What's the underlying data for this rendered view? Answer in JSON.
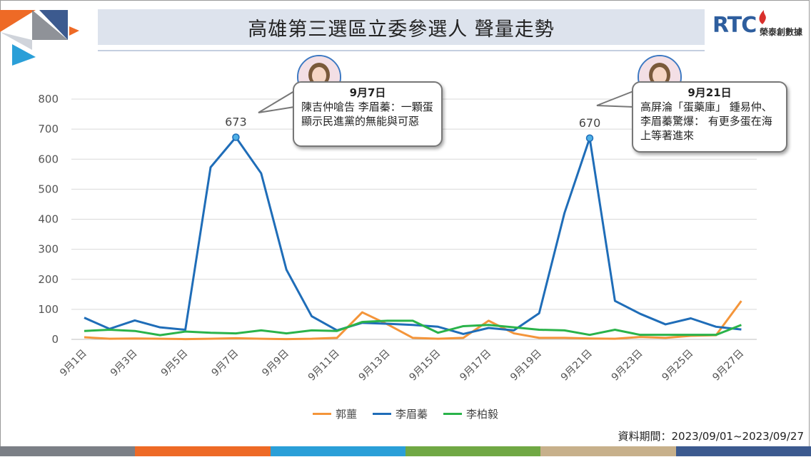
{
  "header": {
    "title": "高雄第三選區立委參選人  聲量走勢",
    "logo_mark": "RTC",
    "logo_text": "榮泰創數據"
  },
  "colors": {
    "guo": "#f4953a",
    "li_meixun": "#1f6db8",
    "li_boyi": "#2ab34a",
    "footer": [
      "#7b7f86",
      "#ee6a26",
      "#2a9fd8",
      "#70a844",
      "#c7b08b",
      "#3c5a8f"
    ]
  },
  "chart_data": {
    "type": "line",
    "x": [
      "9月1日",
      "9月2日",
      "9月3日",
      "9月4日",
      "9月5日",
      "9月6日",
      "9月7日",
      "9月8日",
      "9月9日",
      "9月10日",
      "9月11日",
      "9月12日",
      "9月13日",
      "9月14日",
      "9月15日",
      "9月16日",
      "9月17日",
      "9月18日",
      "9月19日",
      "9月20日",
      "9月21日",
      "9月22日",
      "9月23日",
      "9月24日",
      "9月25日",
      "9月26日",
      "9月27日"
    ],
    "tick_labels": [
      "9月1日",
      "9月3日",
      "9月5日",
      "9月7日",
      "9月9日",
      "9月11日",
      "9月13日",
      "9月15日",
      "9月17日",
      "9月19日",
      "9月21日",
      "9月23日",
      "9月25日",
      "9月27日"
    ],
    "ylim": [
      0,
      800
    ],
    "yticks": [
      0,
      100,
      200,
      300,
      400,
      500,
      600,
      700,
      800
    ],
    "grid": true,
    "legend_position": "bottom",
    "series": [
      {
        "name": "郭蘁",
        "color": "#f4953a",
        "values": [
          7,
          2,
          3,
          2,
          1,
          2,
          4,
          2,
          1,
          2,
          5,
          90,
          50,
          5,
          2,
          5,
          62,
          20,
          5,
          5,
          3,
          2,
          8,
          5,
          12,
          14,
          128
        ]
      },
      {
        "name": "李眉蓁",
        "color": "#1f6db8",
        "values": [
          72,
          35,
          63,
          40,
          32,
          573,
          673,
          553,
          232,
          77,
          30,
          55,
          52,
          48,
          42,
          18,
          38,
          30,
          87,
          420,
          670,
          128,
          85,
          50,
          70,
          42,
          33
        ]
      },
      {
        "name": "李柏毅",
        "color": "#2ab34a",
        "values": [
          28,
          32,
          28,
          14,
          26,
          22,
          20,
          30,
          20,
          30,
          28,
          58,
          62,
          62,
          22,
          44,
          48,
          40,
          32,
          30,
          15,
          32,
          15,
          15,
          15,
          15,
          48
        ]
      }
    ],
    "annotations": [
      {
        "label": "673",
        "series": "李眉蓁",
        "x_index": 6,
        "date": "9月7日",
        "text": "陳吉仲嗆告 李眉蓁：一顆蛋顯示民進黨的無能與可惡"
      },
      {
        "label": "670",
        "series": "李眉蓁",
        "x_index": 20,
        "date": "9月21日",
        "text": "高屏淪「蛋藥庫」 鍾易仲、李眉蓁驚爆： 有更多蛋在海上等著進來"
      }
    ]
  },
  "footer": {
    "period": "資料期間：2023/09/01~2023/09/27"
  }
}
